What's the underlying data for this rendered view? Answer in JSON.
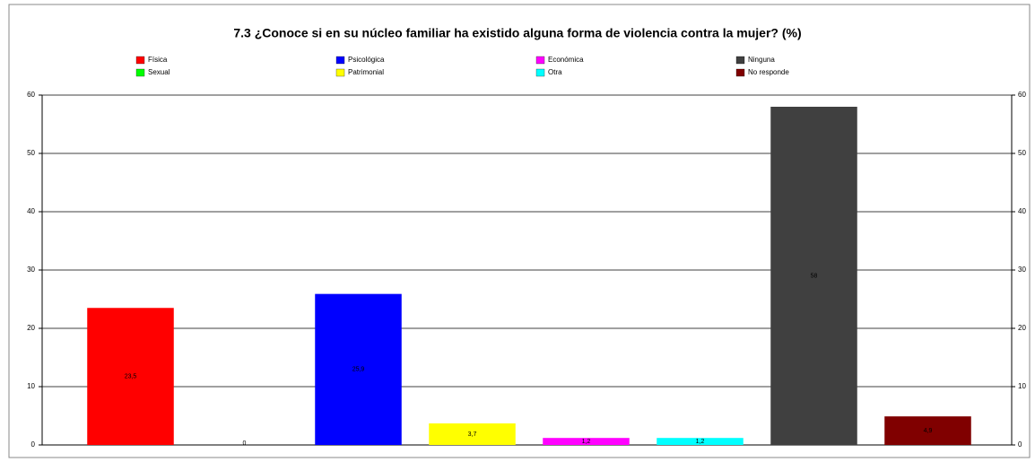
{
  "chart_data": {
    "type": "bar",
    "title": "7.3 ¿Conoce si en su núcleo familiar ha existido alguna forma de violencia contra la mujer? (%)",
    "categories": [
      "Física",
      "Sexual",
      "Psicológica",
      "Patrimonial",
      "Económica",
      "Otra",
      "Ninguna",
      "No responde"
    ],
    "values": [
      23.5,
      0,
      25.9,
      3.7,
      1.2,
      1.2,
      58,
      4.9
    ],
    "value_labels": [
      "23,5",
      "0",
      "25,9",
      "3,7",
      "1,2",
      "1,2",
      "58",
      "4,9"
    ],
    "colors": [
      "#ff0000",
      "#00ff00",
      "#0000ff",
      "#ffff00",
      "#ff00ff",
      "#00ffff",
      "#404040",
      "#800000"
    ],
    "ylim": [
      0,
      60
    ],
    "yticks": [
      0,
      10,
      20,
      30,
      40,
      50,
      60
    ],
    "y2lim": [
      0,
      60
    ],
    "y2ticks": [
      0,
      10,
      20,
      30,
      40,
      50,
      60
    ],
    "grid": true
  }
}
